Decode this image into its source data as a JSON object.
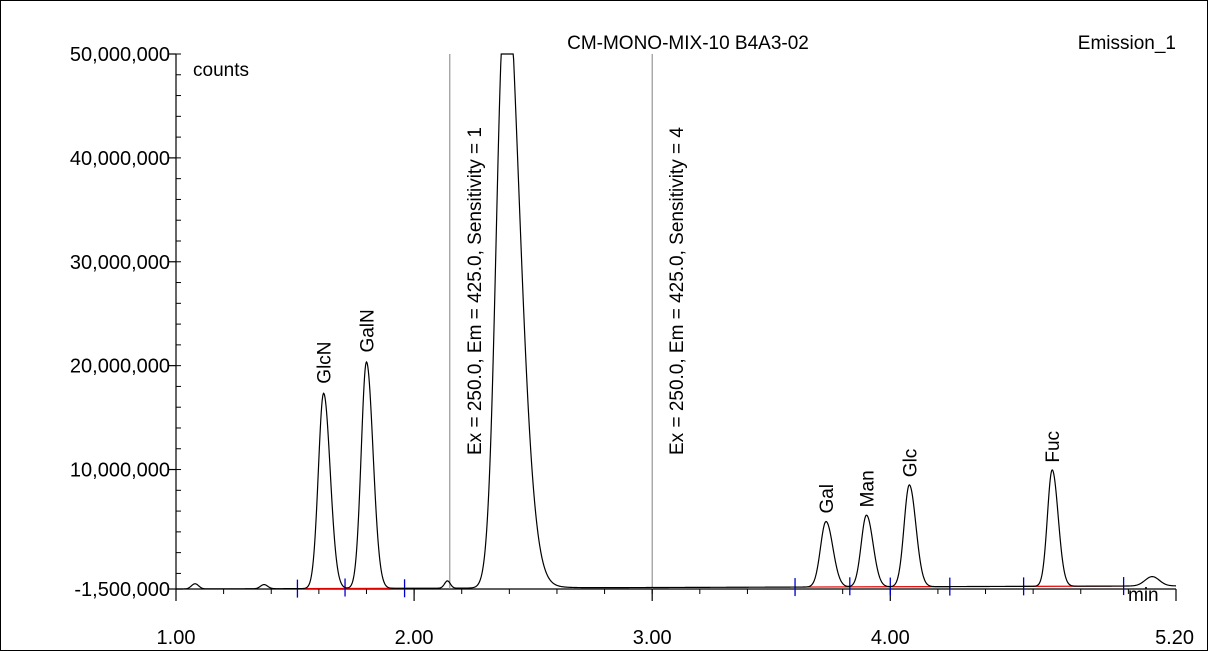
{
  "chart_data": {
    "type": "line",
    "title": "CM-MONO-MIX-10 B4A3-02",
    "channel": "Emission_1",
    "ylabel": "counts",
    "xlabel": "min",
    "xlim": [
      1.0,
      5.2
    ],
    "ylim": [
      -1500000,
      50000000
    ],
    "y_ticks": [
      -1500000,
      10000000,
      20000000,
      30000000,
      40000000,
      50000000
    ],
    "y_tick_labels": [
      "-1,500,000",
      "10,000,000",
      "20,000,000",
      "30,000,000",
      "40,000,000",
      "50,000,000"
    ],
    "x_ticks": [
      1.0,
      2.0,
      3.0,
      4.0,
      5.2
    ],
    "x_tick_labels": [
      "1.00",
      "2.00",
      "3.00",
      "4.00",
      "5.20"
    ],
    "baseline": -1500000,
    "peaks": [
      {
        "name": "GlcN",
        "rt": 1.62,
        "height": 18800000,
        "sigma": 0.022
      },
      {
        "name": "GalN",
        "rt": 1.8,
        "height": 21800000,
        "sigma": 0.022
      },
      {
        "name": "",
        "rt": 2.38,
        "height": 56000000,
        "sigma": 0.035
      },
      {
        "name": "Gal",
        "rt": 3.73,
        "height": 6300000,
        "sigma": 0.023
      },
      {
        "name": "Man",
        "rt": 3.9,
        "height": 6900000,
        "sigma": 0.022
      },
      {
        "name": "Glc",
        "rt": 4.08,
        "height": 9800000,
        "sigma": 0.022
      },
      {
        "name": "Fuc",
        "rt": 4.68,
        "height": 11200000,
        "sigma": 0.02
      }
    ],
    "events": [
      {
        "time": 2.15,
        "label": "Ex = 250.0, Em = 425.0, Sensitivity = 1"
      },
      {
        "time": 3.0,
        "label": "Ex = 250.0, Em = 425.0, Sensitivity = 4"
      }
    ],
    "integration_baselines": [
      [
        1.51,
        1.96
      ],
      [
        3.6,
        4.25
      ],
      [
        4.56,
        4.98
      ]
    ],
    "integration_markers": [
      1.51,
      1.71,
      1.96,
      3.6,
      3.83,
      4.0,
      4.25,
      4.56,
      4.98
    ],
    "colors": {
      "trace": "#000000",
      "baseline": "#e00000",
      "marker": "#0000cc",
      "event": "#808080"
    }
  }
}
